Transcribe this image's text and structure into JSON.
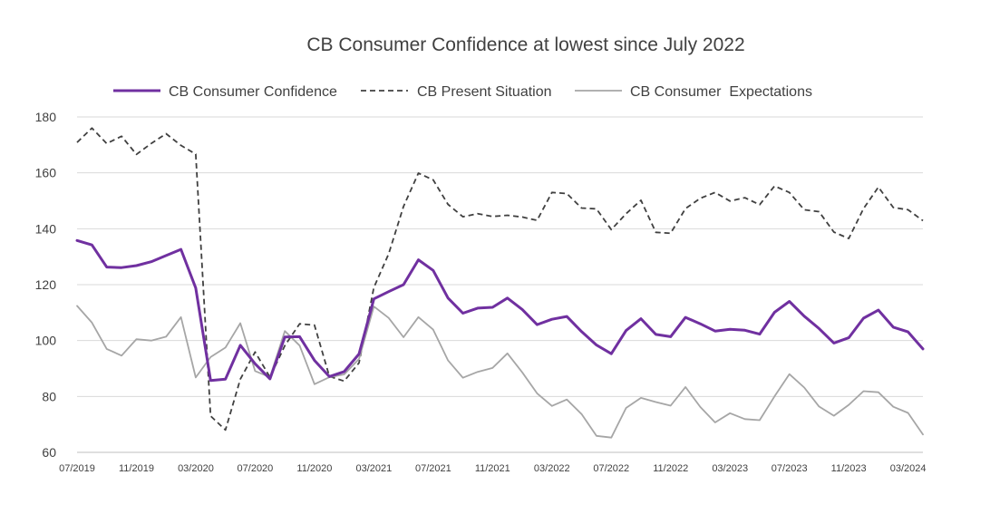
{
  "chart_data": {
    "type": "line",
    "title": "CB Consumer Confidence at lowest since July 2022",
    "xlabel": "",
    "ylabel": "",
    "ylim": [
      60,
      180
    ],
    "yticks": [
      60,
      80,
      100,
      120,
      140,
      160,
      180
    ],
    "grid": true,
    "legend_position": "top",
    "x": [
      "07/2019",
      "08/2019",
      "09/2019",
      "10/2019",
      "11/2019",
      "12/2019",
      "01/2020",
      "02/2020",
      "03/2020",
      "04/2020",
      "05/2020",
      "06/2020",
      "07/2020",
      "08/2020",
      "09/2020",
      "10/2020",
      "11/2020",
      "12/2020",
      "01/2021",
      "02/2021",
      "03/2021",
      "04/2021",
      "05/2021",
      "06/2021",
      "07/2021",
      "08/2021",
      "09/2021",
      "10/2021",
      "11/2021",
      "12/2021",
      "01/2022",
      "02/2022",
      "03/2022",
      "04/2022",
      "05/2022",
      "06/2022",
      "07/2022",
      "08/2022",
      "09/2022",
      "10/2022",
      "11/2022",
      "12/2022",
      "01/2023",
      "02/2023",
      "03/2023",
      "04/2023",
      "05/2023",
      "06/2023",
      "07/2023",
      "08/2023",
      "09/2023",
      "10/2023",
      "11/2023",
      "12/2023",
      "01/2024",
      "02/2024",
      "03/2024",
      "04/2024"
    ],
    "xtick_labels": [
      "07/2019",
      "11/2019",
      "03/2020",
      "07/2020",
      "11/2020",
      "03/2021",
      "07/2021",
      "11/2021",
      "03/2022",
      "07/2022",
      "11/2022",
      "03/2023",
      "07/2023",
      "11/2023",
      "03/2024"
    ],
    "series": [
      {
        "name": "CB Consumer Confidence",
        "color": "#7030A0",
        "style": "solid",
        "values": [
          135.8,
          134.2,
          126.3,
          126.1,
          126.8,
          128.2,
          130.4,
          132.6,
          118.8,
          85.7,
          86.2,
          98.3,
          91.7,
          86.3,
          101.3,
          101.4,
          92.9,
          87.1,
          88.9,
          95.2,
          114.9,
          117.5,
          120.0,
          128.9,
          125.1,
          115.2,
          109.8,
          111.6,
          111.9,
          115.2,
          111.1,
          105.7,
          107.6,
          108.6,
          103.2,
          98.4,
          95.3,
          103.6,
          107.8,
          102.2,
          101.4,
          108.3,
          106.0,
          103.4,
          104.0,
          103.7,
          102.3,
          110.1,
          114.0,
          108.7,
          104.3,
          99.1,
          101.0,
          108.0,
          110.9,
          104.8,
          103.1,
          97.0
        ]
      },
      {
        "name": "CB Present Situation",
        "color": "#404040",
        "style": "dashed",
        "values": [
          170.9,
          176.0,
          170.5,
          173.1,
          166.6,
          170.5,
          174.0,
          169.8,
          166.7,
          73.0,
          68.0,
          86.2,
          95.9,
          86.9,
          98.2,
          106.0,
          105.5,
          87.2,
          85.5,
          92.0,
          119.0,
          131.0,
          148.0,
          159.9,
          157.5,
          148.7,
          144.3,
          145.4,
          144.4,
          144.8,
          144.2,
          143.0,
          153.0,
          152.6,
          147.4,
          147.1,
          139.7,
          145.4,
          150.2,
          138.7,
          138.4,
          147.2,
          150.9,
          153.0,
          149.9,
          151.1,
          148.6,
          155.3,
          153.0,
          146.8,
          146.1,
          138.8,
          136.5,
          147.2,
          154.9,
          147.6,
          146.8,
          142.9
        ]
      },
      {
        "name": "CB Consumer  Expectations",
        "color": "#A6A6A6",
        "style": "solid",
        "values": [
          112.4,
          106.4,
          97.0,
          94.6,
          100.5,
          100.0,
          101.4,
          108.4,
          86.8,
          94.1,
          97.5,
          106.2,
          89.1,
          86.9,
          103.4,
          98.2,
          84.4,
          86.9,
          87.9,
          93.4,
          112.2,
          108.1,
          101.2,
          108.4,
          103.9,
          92.9,
          86.7,
          88.8,
          90.2,
          95.4,
          88.6,
          81.1,
          76.6,
          78.9,
          73.7,
          65.9,
          65.3,
          75.9,
          79.5,
          78.0,
          76.7,
          83.4,
          76.2,
          70.7,
          74.0,
          71.9,
          71.5,
          80.0,
          88.0,
          83.2,
          76.4,
          73.1,
          77.0,
          81.9,
          81.5,
          76.3,
          74.1,
          66.4
        ]
      }
    ]
  }
}
